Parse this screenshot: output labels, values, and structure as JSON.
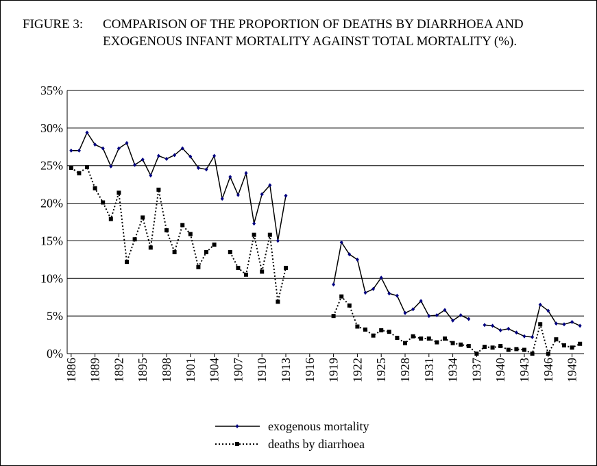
{
  "chart_data": {
    "type": "line",
    "title_label": "FIGURE 3:",
    "title": "COMPARISON OF THE PROPORTION OF DEATHS BY DIARRHOEA AND EXOGENOUS INFANT MORTALITY AGAINST TOTAL MORTALITY (%).",
    "x": [
      1886,
      1887,
      1888,
      1889,
      1890,
      1891,
      1892,
      1893,
      1894,
      1895,
      1896,
      1897,
      1898,
      1899,
      1900,
      1901,
      1902,
      1903,
      1904,
      1905,
      1906,
      1907,
      1908,
      1909,
      1910,
      1911,
      1912,
      1913,
      1914,
      1915,
      1916,
      1917,
      1918,
      1919,
      1920,
      1921,
      1922,
      1923,
      1924,
      1925,
      1926,
      1927,
      1928,
      1929,
      1930,
      1931,
      1932,
      1933,
      1934,
      1935,
      1936,
      1937,
      1938,
      1939,
      1940,
      1941,
      1942,
      1943,
      1944,
      1945,
      1946,
      1947,
      1948,
      1949,
      1950
    ],
    "series": [
      {
        "name": "exogenous mortality",
        "color": "#000080",
        "line_color": "#000000",
        "line_style": "solid",
        "marker": "diamond",
        "values": [
          27,
          27,
          29.4,
          27.8,
          27.3,
          24.9,
          27.3,
          28,
          25.1,
          25.8,
          23.7,
          26.3,
          25.9,
          26.4,
          27.3,
          26.2,
          24.7,
          24.5,
          26.3,
          20.6,
          23.5,
          21.1,
          24,
          17.3,
          21.2,
          22.4,
          15,
          21,
          null,
          null,
          null,
          null,
          null,
          9.2,
          14.8,
          13.2,
          12.5,
          8.1,
          8.6,
          10.1,
          8,
          7.7,
          5.4,
          5.9,
          7,
          5,
          5.1,
          5.8,
          4.4,
          5.1,
          4.6,
          null,
          3.8,
          3.7,
          3.1,
          3.3,
          2.8,
          2.3,
          2.2,
          6.5,
          5.7,
          4,
          3.9,
          4.2,
          3.7
        ]
      },
      {
        "name": "deaths by diarrhoea",
        "color": "#000000",
        "line_color": "#000000",
        "line_style": "dotted",
        "marker": "square",
        "values": [
          24.7,
          24,
          24.8,
          22,
          20.1,
          17.9,
          21.4,
          12.2,
          15.2,
          18.1,
          14.1,
          21.8,
          16.4,
          13.5,
          17.1,
          15.9,
          11.5,
          13.5,
          14.5,
          null,
          13.5,
          11.4,
          10.5,
          15.8,
          10.9,
          15.8,
          6.9,
          11.4,
          null,
          null,
          null,
          null,
          null,
          5,
          7.6,
          6.4,
          3.6,
          3.2,
          2.4,
          3.1,
          2.9,
          2.1,
          1.4,
          2.3,
          2,
          2,
          1.5,
          2,
          1.4,
          1.2,
          1,
          0,
          0.9,
          0.8,
          1,
          0.5,
          0.6,
          0.5,
          0,
          3.9,
          0,
          1.9,
          1.1,
          0.8,
          1.3
        ]
      }
    ],
    "xlim": [
      1885.5,
      1950.5
    ],
    "xticks": [
      1886,
      1889,
      1892,
      1895,
      1898,
      1901,
      1904,
      1907,
      1910,
      1913,
      1916,
      1919,
      1922,
      1925,
      1928,
      1931,
      1934,
      1937,
      1940,
      1943,
      1946,
      1949
    ],
    "ylim": [
      0,
      35
    ],
    "yticks": [
      {
        "value": 0,
        "label": "0%"
      },
      {
        "value": 5,
        "label": "5%"
      },
      {
        "value": 10,
        "label": "10%"
      },
      {
        "value": 15,
        "label": "15%"
      },
      {
        "value": 20,
        "label": "20%"
      },
      {
        "value": 25,
        "label": "25%"
      },
      {
        "value": 30,
        "label": "30%"
      },
      {
        "value": 35,
        "label": "35%"
      }
    ],
    "grid": true,
    "legend": "bottom"
  }
}
